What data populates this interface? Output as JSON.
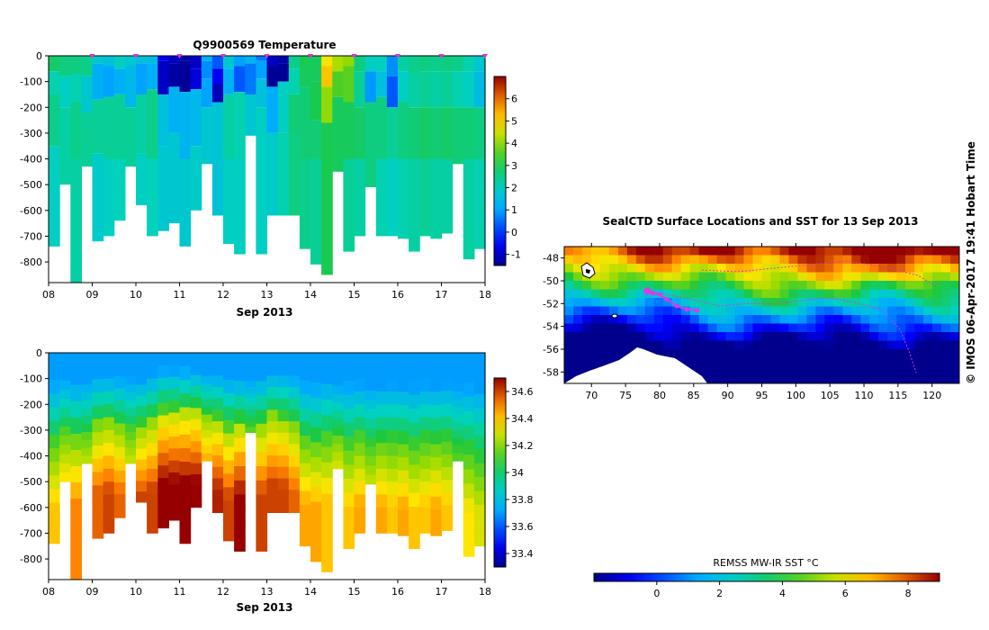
{
  "chart_data": [
    {
      "type": "heatmap",
      "id": "temperature",
      "title": "Q9900569  Temperature",
      "xlabel": "Sep 2013",
      "ylabel": "",
      "x_ticks": [
        "08",
        "09",
        "10",
        "11",
        "12",
        "13",
        "14",
        "15",
        "16",
        "17",
        "18"
      ],
      "xlim": [
        8,
        18
      ],
      "y_ticks": [
        "0",
        "-100",
        "-200",
        "-300",
        "-400",
        "-500",
        "-600",
        "-700",
        "-800"
      ],
      "ylim": [
        -880,
        0
      ],
      "colorbar_ticks": [
        "-1",
        "0",
        "1",
        "2",
        "3",
        "4",
        "5",
        "6"
      ],
      "colorbar_range": [
        -1.5,
        7
      ],
      "profile_markers_day": [
        9,
        10,
        11,
        12,
        13,
        14,
        15,
        16,
        17,
        18
      ],
      "profiles": [
        {
          "day": 8.0,
          "max_depth": 740,
          "layers": [
            [
              0,
              2.8
            ],
            [
              60,
              2.2
            ],
            [
              150,
              2.5
            ],
            [
              350,
              2.0
            ]
          ]
        },
        {
          "day": 8.25,
          "max_depth": 500,
          "layers": [
            [
              0,
              2.6
            ],
            [
              80,
              2.0
            ],
            [
              200,
              2.3
            ]
          ]
        },
        {
          "day": 8.5,
          "max_depth": 880,
          "layers": [
            [
              0,
              2.6
            ],
            [
              70,
              2.2
            ],
            [
              180,
              2.5
            ],
            [
              400,
              2.3
            ]
          ]
        },
        {
          "day": 8.75,
          "max_depth": 430,
          "layers": [
            [
              0,
              2.5
            ],
            [
              80,
              1.8
            ],
            [
              220,
              2.4
            ]
          ]
        },
        {
          "day": 9.0,
          "max_depth": 720,
          "layers": [
            [
              0,
              1.8
            ],
            [
              30,
              1.2
            ],
            [
              170,
              2.4
            ],
            [
              380,
              1.9
            ]
          ]
        },
        {
          "day": 9.25,
          "max_depth": 700,
          "layers": [
            [
              0,
              1.6
            ],
            [
              40,
              1.0
            ],
            [
              160,
              2.4
            ],
            [
              400,
              2.0
            ]
          ]
        },
        {
          "day": 9.5,
          "max_depth": 640,
          "layers": [
            [
              0,
              2.0
            ],
            [
              50,
              1.2
            ],
            [
              150,
              2.4
            ],
            [
              400,
              2.1
            ]
          ]
        },
        {
          "day": 9.75,
          "max_depth": 430,
          "layers": [
            [
              0,
              1.8
            ],
            [
              40,
              1.4
            ],
            [
              200,
              2.4
            ]
          ]
        },
        {
          "day": 10.0,
          "max_depth": 580,
          "layers": [
            [
              0,
              1.6
            ],
            [
              30,
              1.0
            ],
            [
              150,
              2.3
            ],
            [
              380,
              2.0
            ]
          ]
        },
        {
          "day": 10.25,
          "max_depth": 700,
          "layers": [
            [
              0,
              1.5
            ],
            [
              30,
              1.2
            ],
            [
              130,
              2.5
            ],
            [
              400,
              2.1
            ]
          ]
        },
        {
          "day": 10.5,
          "max_depth": 680,
          "layers": [
            [
              0,
              -0.5
            ],
            [
              20,
              -1.0
            ],
            [
              150,
              1.6
            ],
            [
              350,
              1.8
            ]
          ]
        },
        {
          "day": 10.75,
          "max_depth": 650,
          "layers": [
            [
              0,
              -1.0
            ],
            [
              30,
              -1.3
            ],
            [
              120,
              1.2
            ],
            [
              300,
              1.8
            ]
          ]
        },
        {
          "day": 11.0,
          "max_depth": 740,
          "layers": [
            [
              0,
              -1.2
            ],
            [
              20,
              -1.4
            ],
            [
              140,
              1.3
            ],
            [
              400,
              1.8
            ]
          ]
        },
        {
          "day": 11.25,
          "max_depth": 600,
          "layers": [
            [
              0,
              -1.0
            ],
            [
              50,
              -0.8
            ],
            [
              130,
              1.4
            ],
            [
              350,
              1.9
            ]
          ]
        },
        {
          "day": 11.5,
          "max_depth": 420,
          "layers": [
            [
              0,
              1.2
            ],
            [
              20,
              0.8
            ],
            [
              90,
              1.0
            ],
            [
              200,
              1.8
            ]
          ]
        },
        {
          "day": 11.75,
          "max_depth": 620,
          "layers": [
            [
              0,
              0.3
            ],
            [
              50,
              -0.6
            ],
            [
              110,
              -1.1
            ],
            [
              180,
              1.7
            ]
          ]
        },
        {
          "day": 12.0,
          "max_depth": 730,
          "layers": [
            [
              0,
              1.8
            ],
            [
              50,
              1.2
            ],
            [
              150,
              2.3
            ],
            [
              400,
              2.0
            ]
          ]
        },
        {
          "day": 12.25,
          "max_depth": 770,
          "layers": [
            [
              0,
              1.0
            ],
            [
              40,
              0.3
            ],
            [
              140,
              2.2
            ],
            [
              400,
              2.0
            ]
          ]
        },
        {
          "day": 12.5,
          "max_depth": 310,
          "layers": [
            [
              0,
              1.3
            ],
            [
              30,
              0.6
            ],
            [
              150,
              1.8
            ]
          ]
        },
        {
          "day": 12.75,
          "max_depth": 770,
          "layers": [
            [
              0,
              0.6
            ],
            [
              20,
              1.0
            ],
            [
              90,
              1.6
            ],
            [
              200,
              2.0
            ]
          ]
        },
        {
          "day": 13.0,
          "max_depth": 620,
          "layers": [
            [
              0,
              -1.0
            ],
            [
              40,
              -1.4
            ],
            [
              120,
              1.1
            ],
            [
              300,
              1.9
            ]
          ]
        },
        {
          "day": 13.25,
          "max_depth": 620,
          "layers": [
            [
              0,
              -1.2
            ],
            [
              30,
              -1.4
            ],
            [
              100,
              2.0
            ],
            [
              300,
              2.2
            ]
          ]
        },
        {
          "day": 13.5,
          "max_depth": 620,
          "layers": [
            [
              0,
              2.5
            ],
            [
              50,
              2.2
            ],
            [
              150,
              2.7
            ],
            [
              300,
              2.6
            ]
          ]
        },
        {
          "day": 13.75,
          "max_depth": 750,
          "layers": [
            [
              0,
              3.0
            ],
            [
              40,
              2.9
            ],
            [
              120,
              2.7
            ],
            [
              400,
              2.5
            ]
          ]
        },
        {
          "day": 14.0,
          "max_depth": 810,
          "layers": [
            [
              0,
              2.9
            ],
            [
              100,
              3.0
            ],
            [
              250,
              2.7
            ],
            [
              400,
              2.4
            ]
          ]
        },
        {
          "day": 14.25,
          "max_depth": 850,
          "layers": [
            [
              0,
              4.8
            ],
            [
              40,
              5.2
            ],
            [
              120,
              4.0
            ],
            [
              260,
              3.0
            ]
          ]
        },
        {
          "day": 14.5,
          "max_depth": 450,
          "layers": [
            [
              0,
              4.2
            ],
            [
              60,
              3.5
            ],
            [
              160,
              2.9
            ]
          ]
        },
        {
          "day": 14.75,
          "max_depth": 760,
          "layers": [
            [
              0,
              4.0
            ],
            [
              40,
              3.6
            ],
            [
              180,
              2.9
            ],
            [
              400,
              2.4
            ]
          ]
        },
        {
          "day": 15.0,
          "max_depth": 700,
          "layers": [
            [
              0,
              2.6
            ],
            [
              60,
              2.4
            ],
            [
              200,
              2.8
            ],
            [
              400,
              2.3
            ]
          ]
        },
        {
          "day": 15.25,
          "max_depth": 510,
          "layers": [
            [
              0,
              2.0
            ],
            [
              60,
              0.9
            ],
            [
              180,
              2.6
            ]
          ]
        },
        {
          "day": 15.5,
          "max_depth": 700,
          "layers": [
            [
              0,
              2.0
            ],
            [
              60,
              1.6
            ],
            [
              160,
              2.6
            ],
            [
              400,
              2.2
            ]
          ]
        },
        {
          "day": 15.75,
          "max_depth": 700,
          "layers": [
            [
              0,
              0.8
            ],
            [
              80,
              0.3
            ],
            [
              200,
              2.4
            ],
            [
              400,
              2.0
            ]
          ]
        },
        {
          "day": 16.0,
          "max_depth": 710,
          "layers": [
            [
              0,
              2.3
            ],
            [
              60,
              2.0
            ],
            [
              180,
              2.6
            ],
            [
              400,
              2.2
            ]
          ]
        },
        {
          "day": 16.25,
          "max_depth": 760,
          "layers": [
            [
              0,
              2.5
            ],
            [
              70,
              2.3
            ],
            [
              200,
              2.7
            ],
            [
              400,
              2.3
            ]
          ]
        },
        {
          "day": 16.5,
          "max_depth": 700,
          "layers": [
            [
              0,
              2.6
            ],
            [
              60,
              2.4
            ],
            [
              200,
              2.8
            ],
            [
              400,
              2.4
            ]
          ]
        },
        {
          "day": 16.75,
          "max_depth": 710,
          "layers": [
            [
              0,
              2.5
            ],
            [
              60,
              2.3
            ],
            [
              200,
              2.7
            ],
            [
              400,
              2.3
            ]
          ]
        },
        {
          "day": 17.0,
          "max_depth": 690,
          "layers": [
            [
              0,
              2.6
            ],
            [
              60,
              2.4
            ],
            [
              200,
              2.8
            ],
            [
              400,
              2.3
            ]
          ]
        },
        {
          "day": 17.25,
          "max_depth": 420,
          "layers": [
            [
              0,
              2.5
            ],
            [
              60,
              2.2
            ],
            [
              200,
              2.7
            ]
          ]
        },
        {
          "day": 17.5,
          "max_depth": 790,
          "layers": [
            [
              0,
              2.2
            ],
            [
              60,
              2.0
            ],
            [
              200,
              2.7
            ],
            [
              400,
              2.3
            ]
          ]
        },
        {
          "day": 17.75,
          "max_depth": 750,
          "layers": [
            [
              0,
              1.8
            ],
            [
              60,
              1.5
            ],
            [
              200,
              2.6
            ],
            [
              400,
              2.2
            ]
          ]
        }
      ]
    },
    {
      "type": "heatmap",
      "id": "salinity",
      "title": "",
      "xlabel": "Sep 2013",
      "ylabel": "",
      "x_ticks": [
        "08",
        "09",
        "10",
        "11",
        "12",
        "13",
        "14",
        "15",
        "16",
        "17",
        "18"
      ],
      "xlim": [
        8,
        18
      ],
      "y_ticks": [
        "0",
        "-100",
        "-200",
        "-300",
        "-400",
        "-500",
        "-600",
        "-700",
        "-800"
      ],
      "ylim": [
        -880,
        0
      ],
      "colorbar_ticks": [
        "33.4",
        "33.6",
        "33.8",
        "34",
        "34.2",
        "34.4",
        "34.6"
      ],
      "colorbar_range": [
        33.3,
        34.7
      ],
      "surface_salinity": 33.7,
      "halocline_top_depth": [
        200,
        170,
        200,
        180,
        150,
        150,
        160,
        170,
        170,
        140,
        110,
        110,
        110,
        110,
        130,
        140,
        170,
        170,
        180,
        160,
        120,
        130,
        150,
        200,
        210,
        180,
        200,
        210,
        200,
        220,
        210,
        200,
        210,
        220,
        200,
        210,
        200,
        220,
        220,
        230
      ],
      "deep_salinity": [
        34.4,
        34.45,
        34.5,
        34.45,
        34.55,
        34.6,
        34.55,
        34.45,
        34.6,
        34.6,
        34.7,
        34.7,
        34.7,
        34.7,
        34.6,
        34.65,
        34.6,
        34.7,
        34.6,
        34.6,
        34.6,
        34.6,
        34.55,
        34.45,
        34.45,
        34.4,
        34.5,
        34.4,
        34.45,
        34.4,
        34.45,
        34.4,
        34.45,
        34.4,
        34.4,
        34.45,
        34.4,
        34.35,
        34.35,
        34.3
      ]
    },
    {
      "type": "heatmap",
      "id": "sst-map",
      "title": "SealCTD Surface Locations and SST for 13 Sep 2013",
      "xlabel": "",
      "ylabel": "",
      "x_ticks": [
        "70",
        "75",
        "80",
        "85",
        "90",
        "95",
        "100",
        "105",
        "110",
        "115",
        "120"
      ],
      "xlim": [
        66,
        124
      ],
      "y_ticks": [
        "-48",
        "-50",
        "-52",
        "-54",
        "-56",
        "-58"
      ],
      "ylim": [
        -59,
        -47
      ],
      "colorbar_label": "REMSS MW-IR SST °C",
      "colorbar_ticks": [
        "0",
        "2",
        "4",
        "6",
        "8"
      ],
      "colorbar_range": [
        -2,
        9
      ],
      "track_lon": [
        78.2,
        79.0,
        80.0,
        81.0,
        82.5,
        84.0,
        85.5
      ],
      "track_lat": [
        -50.9,
        -51.1,
        -51.2,
        -51.6,
        -52.2,
        -52.5,
        -52.6
      ],
      "credit": "© IMOS 06-Apr-2017 19:41 Hobart Time"
    }
  ]
}
